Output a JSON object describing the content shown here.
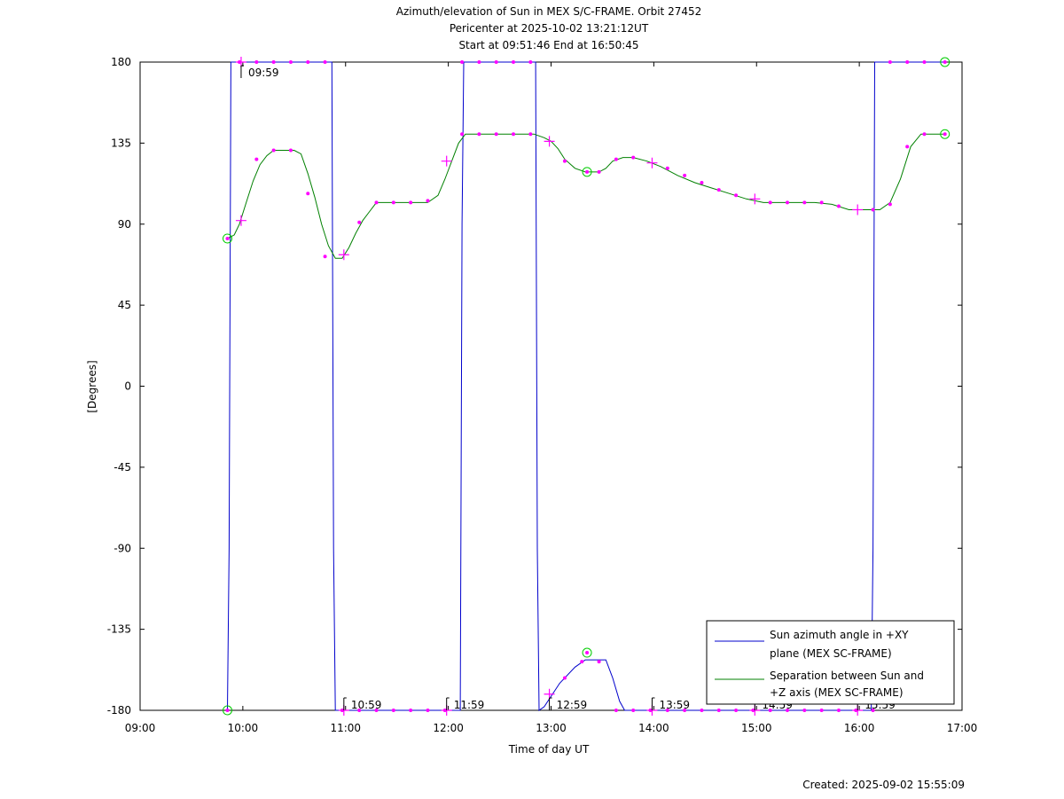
{
  "chart_data": {
    "type": "line",
    "title_lines": [
      "Azimuth/elevation of Sun in MEX S/C-FRAME.  Orbit 27452",
      "Pericenter at 2025-10-02 13:21:12UT",
      "Start at 09:51:46 End at 16:50:45"
    ],
    "xlabel": "Time of day UT",
    "ylabel": "[Degrees]",
    "xlim": [
      "09:00",
      "17:00"
    ],
    "ylim": [
      -180,
      180
    ],
    "x_ticks": [
      "09:00",
      "10:00",
      "11:00",
      "12:00",
      "13:00",
      "14:00",
      "15:00",
      "16:00",
      "17:00"
    ],
    "y_ticks": [
      "180",
      "135",
      "90",
      "45",
      "0",
      "-45",
      "-90",
      "-135",
      "-180"
    ],
    "grid": false,
    "legend_position": "bottom-right",
    "series": [
      {
        "name": "Sun azimuth angle in +XY plane (MEX SC-FRAME)",
        "legend_lines": [
          "Sun azimuth angle in +XY",
          "plane (MEX SC-FRAME)"
        ],
        "color": "#0000cc",
        "points": [
          [
            "09:51",
            -180
          ],
          [
            "09:52",
            -90
          ],
          [
            "09:53",
            180
          ],
          [
            "10:52",
            180
          ],
          [
            "10:53",
            -90
          ],
          [
            "10:54",
            -180
          ],
          [
            "12:07",
            -180
          ],
          [
            "12:08",
            90
          ],
          [
            "12:09",
            180
          ],
          [
            "12:51",
            180
          ],
          [
            "12:52",
            -90
          ],
          [
            "12:53",
            -180
          ],
          [
            "12:56",
            -178
          ],
          [
            "13:05",
            -165
          ],
          [
            "13:14",
            -156
          ],
          [
            "13:20",
            -152
          ],
          [
            "13:32",
            -152
          ],
          [
            "13:36",
            -162
          ],
          [
            "13:40",
            -175
          ],
          [
            "13:43",
            -180
          ],
          [
            "16:07",
            -180
          ],
          [
            "16:08",
            -90
          ],
          [
            "16:09",
            180
          ],
          [
            "16:50",
            180
          ]
        ],
        "markers": [
          [
            "09:58",
            180
          ],
          [
            "10:08",
            180
          ],
          [
            "10:18",
            180
          ],
          [
            "10:28",
            180
          ],
          [
            "10:38",
            180
          ],
          [
            "10:48",
            180
          ],
          [
            "10:58",
            -180
          ],
          [
            "11:08",
            -180
          ],
          [
            "11:18",
            -180
          ],
          [
            "11:28",
            -180
          ],
          [
            "11:38",
            -180
          ],
          [
            "11:48",
            -180
          ],
          [
            "11:58",
            -180
          ],
          [
            "12:08",
            180
          ],
          [
            "12:18",
            180
          ],
          [
            "12:28",
            180
          ],
          [
            "12:38",
            180
          ],
          [
            "12:48",
            180
          ],
          [
            "13:08",
            -162
          ],
          [
            "13:18",
            -153
          ],
          [
            "13:28",
            -153
          ],
          [
            "13:38",
            -180
          ],
          [
            "13:48",
            -180
          ],
          [
            "13:58",
            -180
          ],
          [
            "14:08",
            -180
          ],
          [
            "14:18",
            -180
          ],
          [
            "14:28",
            -180
          ],
          [
            "14:38",
            -180
          ],
          [
            "14:48",
            -180
          ],
          [
            "14:58",
            -180
          ],
          [
            "15:08",
            -180
          ],
          [
            "15:18",
            -180
          ],
          [
            "15:28",
            -180
          ],
          [
            "15:38",
            -180
          ],
          [
            "15:48",
            -180
          ],
          [
            "15:58",
            -180
          ],
          [
            "16:08",
            -180
          ],
          [
            "16:18",
            180
          ],
          [
            "16:28",
            180
          ],
          [
            "16:38",
            180
          ]
        ],
        "hour_markers": [
          [
            "09:59",
            180
          ],
          [
            "10:59",
            -180
          ],
          [
            "11:59",
            -180
          ],
          [
            "12:59",
            -171
          ],
          [
            "13:59",
            -180
          ],
          [
            "14:59",
            -180
          ],
          [
            "15:59",
            -180
          ]
        ],
        "end_markers": [
          [
            "09:51",
            -180
          ],
          [
            "13:21",
            -148
          ],
          [
            "16:50",
            180
          ]
        ]
      },
      {
        "name": "Separation between Sun and +Z axis (MEX SC-FRAME)",
        "legend_lines": [
          "Separation between Sun and",
          "+Z axis (MEX SC-FRAME)"
        ],
        "color": "#008000",
        "points": [
          [
            "09:51",
            82
          ],
          [
            "09:55",
            84
          ],
          [
            "09:58",
            90
          ],
          [
            "10:02",
            102
          ],
          [
            "10:06",
            114
          ],
          [
            "10:10",
            123
          ],
          [
            "10:14",
            128
          ],
          [
            "10:18",
            131
          ],
          [
            "10:22",
            131
          ],
          [
            "10:26",
            131
          ],
          [
            "10:30",
            131
          ],
          [
            "10:34",
            129
          ],
          [
            "10:38",
            118
          ],
          [
            "10:42",
            105
          ],
          [
            "10:46",
            90
          ],
          [
            "10:50",
            78
          ],
          [
            "10:54",
            71
          ],
          [
            "10:58",
            71
          ],
          [
            "11:02",
            77
          ],
          [
            "11:06",
            85
          ],
          [
            "11:10",
            92
          ],
          [
            "11:14",
            97
          ],
          [
            "11:18",
            102
          ],
          [
            "11:22",
            102
          ],
          [
            "11:30",
            102
          ],
          [
            "11:40",
            102
          ],
          [
            "11:48",
            102
          ],
          [
            "11:54",
            106
          ],
          [
            "11:58",
            115
          ],
          [
            "12:02",
            125
          ],
          [
            "12:06",
            135
          ],
          [
            "12:10",
            140
          ],
          [
            "12:14",
            140
          ],
          [
            "12:24",
            140
          ],
          [
            "12:34",
            140
          ],
          [
            "12:44",
            140
          ],
          [
            "12:50",
            140
          ],
          [
            "12:56",
            138
          ],
          [
            "13:00",
            136
          ],
          [
            "13:04",
            132
          ],
          [
            "13:08",
            126
          ],
          [
            "13:14",
            121
          ],
          [
            "13:20",
            119
          ],
          [
            "13:28",
            119
          ],
          [
            "13:32",
            121
          ],
          [
            "13:36",
            125
          ],
          [
            "13:42",
            127
          ],
          [
            "13:48",
            127
          ],
          [
            "13:56",
            125
          ],
          [
            "14:04",
            122
          ],
          [
            "14:14",
            117
          ],
          [
            "14:24",
            113
          ],
          [
            "14:34",
            110
          ],
          [
            "14:44",
            107
          ],
          [
            "14:54",
            104
          ],
          [
            "15:04",
            102
          ],
          [
            "15:14",
            102
          ],
          [
            "15:24",
            102
          ],
          [
            "15:34",
            102
          ],
          [
            "15:44",
            101
          ],
          [
            "15:54",
            98
          ],
          [
            "16:04",
            98
          ],
          [
            "16:12",
            98
          ],
          [
            "16:18",
            102
          ],
          [
            "16:24",
            115
          ],
          [
            "16:30",
            133
          ],
          [
            "16:36",
            140
          ],
          [
            "16:50",
            140
          ]
        ],
        "markers": [
          [
            "10:08",
            126
          ],
          [
            "10:18",
            131
          ],
          [
            "10:28",
            131
          ],
          [
            "10:38",
            107
          ],
          [
            "10:48",
            72
          ],
          [
            "11:08",
            91
          ],
          [
            "11:18",
            102
          ],
          [
            "11:28",
            102
          ],
          [
            "11:38",
            102
          ],
          [
            "11:48",
            103
          ],
          [
            "12:08",
            140
          ],
          [
            "12:18",
            140
          ],
          [
            "12:28",
            140
          ],
          [
            "12:38",
            140
          ],
          [
            "12:48",
            140
          ],
          [
            "13:08",
            125
          ],
          [
            "13:28",
            119
          ],
          [
            "13:38",
            126
          ],
          [
            "13:48",
            127
          ],
          [
            "14:08",
            121
          ],
          [
            "14:18",
            117
          ],
          [
            "14:28",
            113
          ],
          [
            "14:38",
            109
          ],
          [
            "14:48",
            106
          ],
          [
            "15:08",
            102
          ],
          [
            "15:18",
            102
          ],
          [
            "15:28",
            102
          ],
          [
            "15:38",
            102
          ],
          [
            "15:48",
            100
          ],
          [
            "16:08",
            98
          ],
          [
            "16:18",
            101
          ],
          [
            "16:28",
            133
          ],
          [
            "16:38",
            140
          ]
        ],
        "hour_markers": [
          [
            "09:59",
            92
          ],
          [
            "10:59",
            73
          ],
          [
            "11:59",
            125
          ],
          [
            "12:59",
            136
          ],
          [
            "13:59",
            124
          ],
          [
            "14:59",
            104
          ],
          [
            "15:59",
            98
          ]
        ],
        "end_markers": [
          [
            "09:51",
            82
          ],
          [
            "13:21",
            119
          ],
          [
            "16:50",
            140
          ]
        ]
      }
    ],
    "hour_labels": [
      {
        "text": "09:59",
        "at": [
          "09:59",
          180
        ]
      },
      {
        "text": "10:59",
        "at": [
          "10:59",
          -180
        ]
      },
      {
        "text": "11:59",
        "at": [
          "11:59",
          -180
        ]
      },
      {
        "text": "12:59",
        "at": [
          "12:59",
          -180
        ]
      },
      {
        "text": "13:59",
        "at": [
          "13:59",
          -180
        ]
      },
      {
        "text": "14:59",
        "at": [
          "14:59",
          -180
        ]
      },
      {
        "text": "15:59",
        "at": [
          "15:59",
          -180
        ]
      }
    ],
    "marker_color": "#ff00ff",
    "end_marker_color": "#00cc00"
  },
  "footer": "Created: 2025-09-02 15:55:09"
}
